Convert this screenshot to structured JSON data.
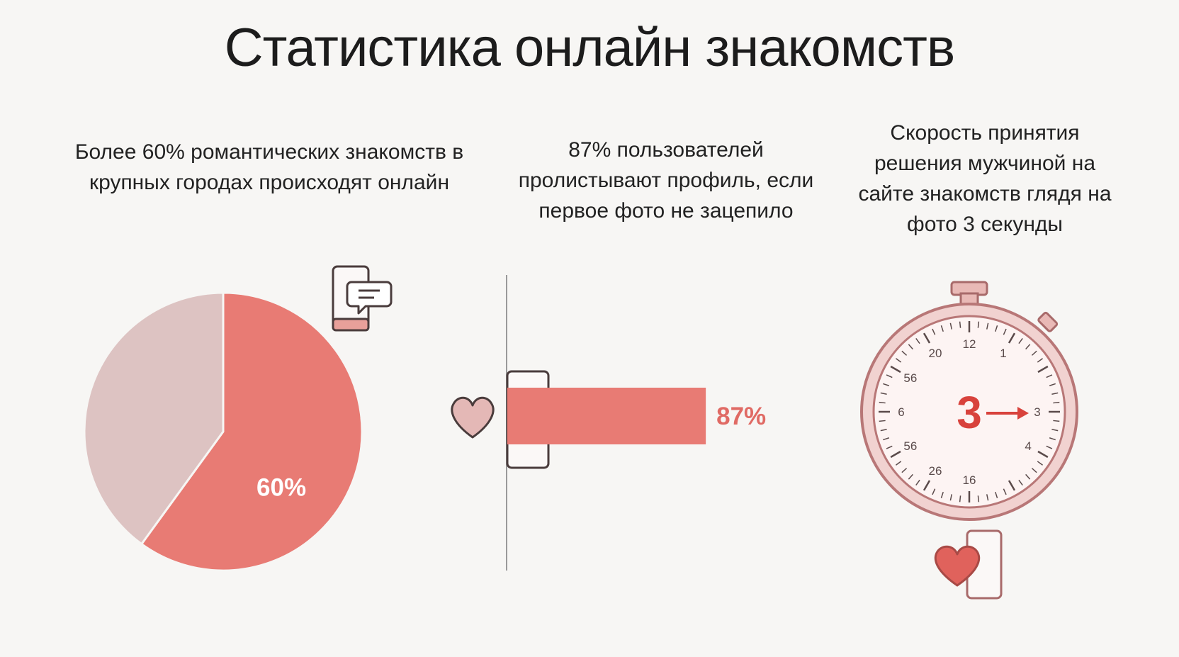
{
  "title": "Статистика онлайн знакомств",
  "captions": {
    "c1": "Более 60% романтических знакомств в крупных городах происходят онлайн",
    "c2": "87% пользователей пролистывают профиль, если первое фото не зацепило",
    "c3": "Скорость принятия решения мужчиной на сайте знакомств глядя на фото 3 секунды"
  },
  "chart_data": [
    {
      "type": "pie",
      "slices": [
        {
          "value": 60,
          "label": "60%",
          "color": "#e87b74"
        },
        {
          "value": 40,
          "label": "",
          "color": "#ddc3c2"
        }
      ]
    },
    {
      "type": "bar",
      "orientation": "horizontal",
      "values": [
        87
      ],
      "labels": [
        "87%"
      ],
      "xlim": [
        0,
        100
      ],
      "color": "#e87b74"
    },
    {
      "type": "other",
      "kind": "stopwatch",
      "value": 3,
      "label": "3",
      "dial_labels": [
        "12",
        "1",
        "3",
        "4",
        "16",
        "26",
        "56",
        "6",
        "56",
        "20"
      ],
      "color": "#d8423c"
    }
  ],
  "icons": [
    "phone-chat-icon",
    "phone-icon",
    "heart-icon",
    "stopwatch-icon",
    "phone-heart-icon"
  ],
  "colors": {
    "accent": "#e87b74",
    "accent_dark": "#d8423c",
    "muted": "#ddc3c2",
    "outline": "#c98a8a"
  }
}
